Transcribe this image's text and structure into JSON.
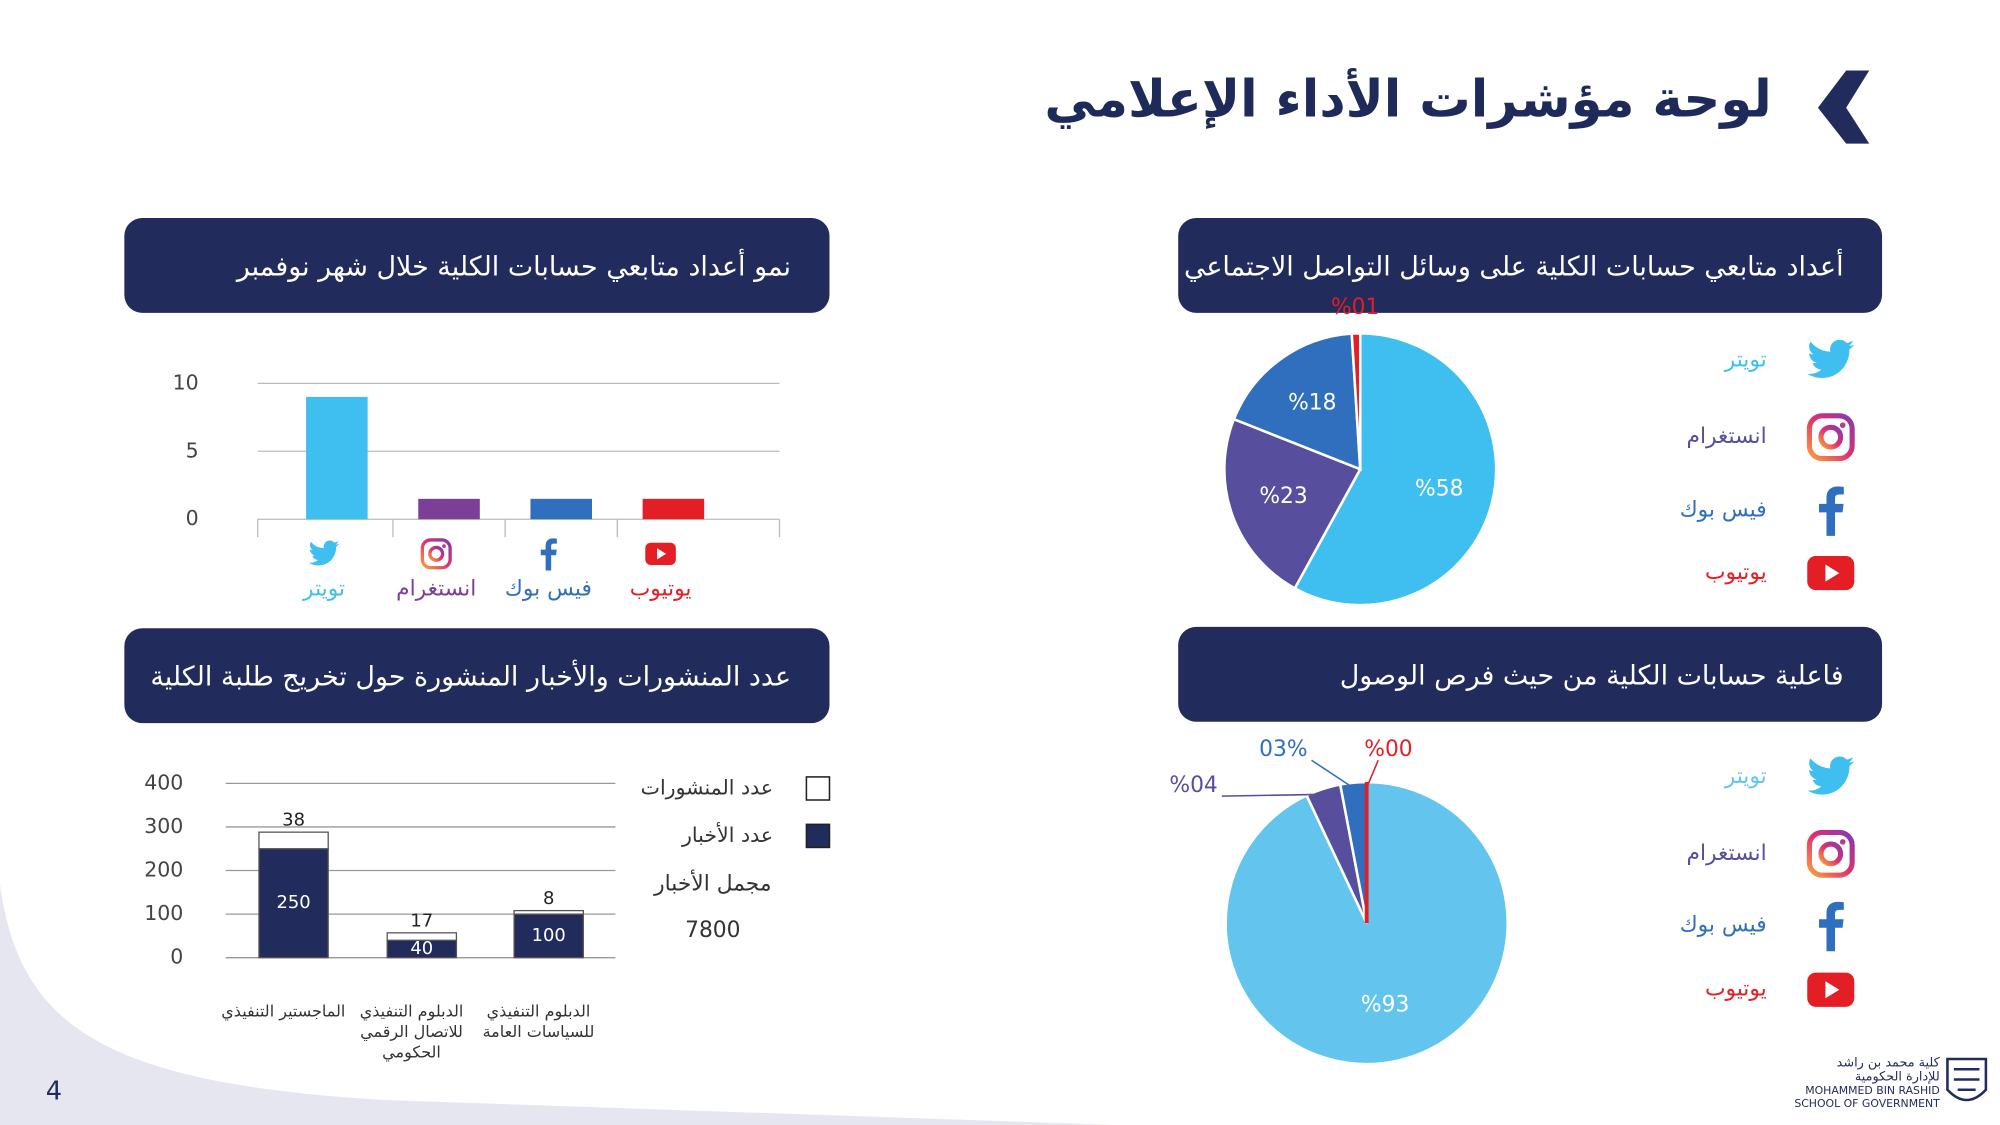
{
  "title": "لوحة مؤشرات الأداء الإعلامي",
  "page_number": "4",
  "logo": {
    "arabic": [
      "كلية محمد بن راشد",
      "للإدارة الحكومية"
    ],
    "english": [
      "MOHAMMED BIN RASHID",
      "SCHOOL OF GOVERNMENT"
    ]
  },
  "chart_data": [
    {
      "type": "pie",
      "title": "أعداد متابعي حسابات الكلية على وسائل التواصل الاجتماعي",
      "categories": [
        "تويتر",
        "انستغرام",
        "فيس بوك",
        "يوتيوب"
      ],
      "values": [
        58,
        23,
        18,
        1
      ],
      "value_labels": [
        "%58",
        "%23",
        "%18",
        "%01"
      ],
      "colors": [
        "#3fbfef",
        "#574f9e",
        "#2f6fbd",
        "#e31e25"
      ]
    },
    {
      "type": "bar",
      "title": "نمو أعداد متابعي حسابات الكلية خلال شهر نوفمبر",
      "categories": [
        "تويتر",
        "انستغرام",
        "فيس بوك",
        "يوتيوب"
      ],
      "values": [
        9,
        1.5,
        1.5,
        1.5
      ],
      "colors": [
        "#3fbfef",
        "#7b3f98",
        "#2f6fbd",
        "#e31e25"
      ],
      "ylim": [
        0,
        10
      ],
      "yticks": [
        0,
        5,
        10
      ],
      "grid": true
    },
    {
      "type": "stacked_bar",
      "title": "عدد المنشورات والأخبار المنشورة حول تخريج طلبة الكلية",
      "categories": [
        "الماجستير التنفيذي",
        "الدبلوم التنفيذي للاتصال الرقمي الحكومي",
        "الدبلوم التنفيذي للسياسات العامة"
      ],
      "series": [
        {
          "name": "عدد الأخبار",
          "color": "#222c5c",
          "values": [
            250,
            40,
            100
          ]
        },
        {
          "name": "عدد المنشورات",
          "color": "#ffffff",
          "values": [
            38,
            17,
            8
          ]
        }
      ],
      "ylim": [
        0,
        400
      ],
      "yticks": [
        0,
        100,
        200,
        300,
        400
      ],
      "grid": true,
      "annotation": {
        "label": "مجمل الأخبار",
        "value": 7800
      }
    },
    {
      "type": "pie",
      "title": "فاعلية حسابات الكلية من حيث فرص الوصول",
      "categories": [
        "تويتر",
        "انستغرام",
        "فيس بوك",
        "يوتيوب"
      ],
      "values": [
        93,
        4,
        3,
        0
      ],
      "value_labels": [
        "%93",
        "%04",
        "03%",
        "%00"
      ],
      "colors": [
        "#63c5ee",
        "#574f9e",
        "#2f6fbd",
        "#e31e25"
      ]
    }
  ]
}
